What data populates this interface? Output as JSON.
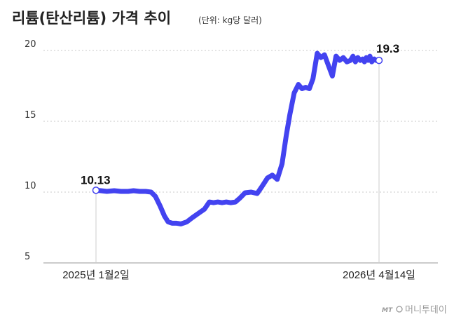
{
  "header": {
    "title": "리튬(탄산리튬) 가격 추이",
    "unit": "(단위: kg당 달러)"
  },
  "watermark": {
    "text": "머니투데이",
    "mark": "MT"
  },
  "colors": {
    "line": "#4343f0",
    "grid": "#c8c8c8",
    "axis": "#999999",
    "text": "#222222"
  },
  "chart_data": {
    "type": "line",
    "title": "리튬(탄산리튬) 가격 추이",
    "unit": "(단위: kg당 달러)",
    "ylim": [
      5,
      20
    ],
    "yticks": [
      "5",
      "10",
      "15",
      "20"
    ],
    "grid": true,
    "x_tick_labels": [
      "2025년 1월2일",
      "2026년 4월14일"
    ],
    "start_label": "10.13",
    "end_label": "19.3",
    "series": [
      {
        "x": [
          "2025-01-02",
          "2025-01-10",
          "2025-01-20",
          "2025-02-01",
          "2025-02-12",
          "2025-02-24",
          "2025-03-05",
          "2025-03-15",
          "2025-03-25",
          "2025-04-03",
          "2025-04-10",
          "2025-04-18",
          "2025-04-25",
          "2025-05-01",
          "2025-05-08",
          "2025-05-15",
          "2025-05-22",
          "2025-06-01",
          "2025-06-10",
          "2025-06-20",
          "2025-06-30",
          "2025-07-08",
          "2025-07-15",
          "2025-07-22",
          "2025-07-29",
          "2025-08-05",
          "2025-08-12",
          "2025-08-20",
          "2025-08-28",
          "2025-09-05",
          "2025-09-15",
          "2025-09-25",
          "2025-10-03",
          "2025-10-12",
          "2025-10-20",
          "2025-10-28",
          "2025-11-05",
          "2025-11-12",
          "2025-11-18",
          "2025-11-25",
          "2025-12-02",
          "2025-12-08",
          "2025-12-14",
          "2025-12-20",
          "2025-12-26",
          "2026-01-02",
          "2026-01-08",
          "2026-01-14",
          "2026-01-20",
          "2026-01-27",
          "2026-02-02",
          "2026-02-08",
          "2026-02-14",
          "2026-02-20",
          "2026-02-26",
          "2026-03-02",
          "2026-03-06",
          "2026-03-10",
          "2026-03-14",
          "2026-03-18",
          "2026-03-21",
          "2026-03-24",
          "2026-03-27",
          "2026-03-30",
          "2026-04-02",
          "2026-04-06",
          "2026-04-09",
          "2026-04-14"
        ],
        "y": [
          10.13,
          10.1,
          10.05,
          10.1,
          10.05,
          10.05,
          10.1,
          10.05,
          10.05,
          10.0,
          9.7,
          9.0,
          8.3,
          7.9,
          7.8,
          7.8,
          7.75,
          7.9,
          8.2,
          8.5,
          8.8,
          9.3,
          9.25,
          9.3,
          9.25,
          9.3,
          9.25,
          9.3,
          9.6,
          9.95,
          10.0,
          9.9,
          10.4,
          11.0,
          11.2,
          10.9,
          12.0,
          14.0,
          15.5,
          17.0,
          17.6,
          17.3,
          17.4,
          17.3,
          18.0,
          19.8,
          19.5,
          19.7,
          19.0,
          18.2,
          19.6,
          19.3,
          19.5,
          19.2,
          19.3,
          19.6,
          19.2,
          19.5,
          19.3,
          19.4,
          19.2,
          19.5,
          19.3,
          19.6,
          19.2,
          19.4,
          19.3,
          19.3
        ]
      }
    ]
  }
}
